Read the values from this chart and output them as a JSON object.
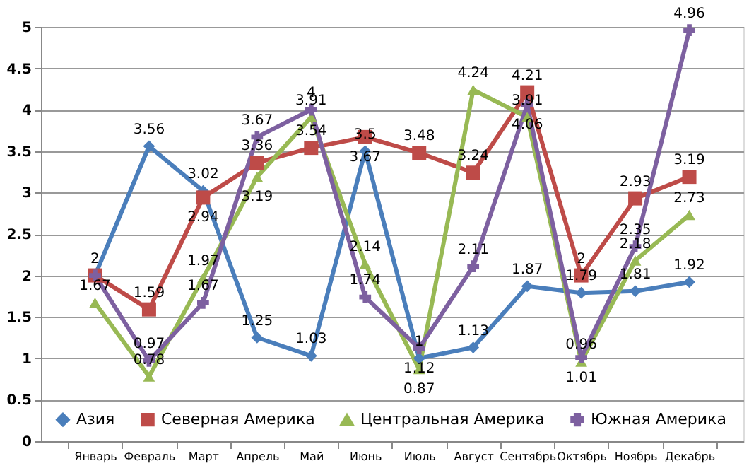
{
  "chart_data": {
    "type": "line",
    "categories": [
      "Январь",
      "Февраль",
      "Март",
      "Апрель",
      "Май",
      "Июнь",
      "Июль",
      "Август",
      "Сентябрь",
      "Октябрь",
      "Ноябрь",
      "Декабрь"
    ],
    "series": [
      {
        "name": "Азия",
        "color": "#4a7ebb",
        "marker": "diamond",
        "values": [
          2,
          3.56,
          3.02,
          1.25,
          1.03,
          3.5,
          1,
          1.13,
          1.87,
          1.79,
          1.81,
          1.92
        ]
      },
      {
        "name": "Северная Америка",
        "color": "#be4b48",
        "marker": "square",
        "values": [
          2,
          1.59,
          2.94,
          3.36,
          3.54,
          3.67,
          3.48,
          3.24,
          4.21,
          2,
          2.93,
          3.19
        ],
        "value_labels": [
          null,
          "1.59",
          "2.94",
          "3.36",
          "3.54",
          "3.67",
          "3.48",
          "3.24",
          "4.21",
          "2",
          "2.93",
          "3.19"
        ]
      },
      {
        "name": "Центральная Америка",
        "color": "#98b954",
        "marker": "triangle",
        "values": [
          1.67,
          0.78,
          1.97,
          3.19,
          3.91,
          2.14,
          0.87,
          4.24,
          3.91,
          0.96,
          2.18,
          2.73
        ]
      },
      {
        "name": "Южная Америка",
        "color": "#7d60a0",
        "marker": "cross",
        "values": [
          2,
          0.97,
          1.67,
          3.67,
          4,
          1.74,
          1.12,
          2.11,
          4.06,
          1.01,
          2.35,
          4.96
        ],
        "value_labels": [
          null,
          "0.97",
          "1.67",
          "3.67",
          "4",
          "1.74",
          "1.12",
          "2.11",
          "4.06",
          "1.01",
          "2.35",
          "4.96"
        ]
      }
    ],
    "ylim": [
      0,
      5
    ],
    "yticks": [
      0,
      0.5,
      1,
      1.5,
      2,
      2.5,
      3,
      3.5,
      4,
      4.5,
      5
    ],
    "grid": "y",
    "legend": "bottom",
    "data_labels": true,
    "line_style": "solid"
  }
}
